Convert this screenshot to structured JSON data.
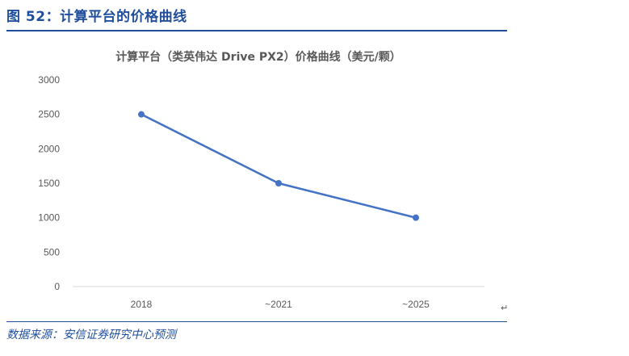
{
  "caption": "图 52：计算平台的价格曲线",
  "source_note": "数据来源：安信证券研究中心预测",
  "edge_mark": "↵",
  "chart_data": {
    "type": "line",
    "title": "计算平台（类英伟达 Drive PX2）价格曲线（美元/颗）",
    "categories": [
      "2018",
      "~2021",
      "~2025"
    ],
    "series": [
      {
        "values": [
          2500,
          1500,
          1000
        ]
      }
    ],
    "yticks": [
      0,
      500,
      1000,
      1500,
      2000,
      2500,
      3000
    ],
    "ylim": [
      0,
      3000
    ],
    "grid": false,
    "line_color": "#4472c4",
    "axis_color": "#d9d9d9"
  }
}
